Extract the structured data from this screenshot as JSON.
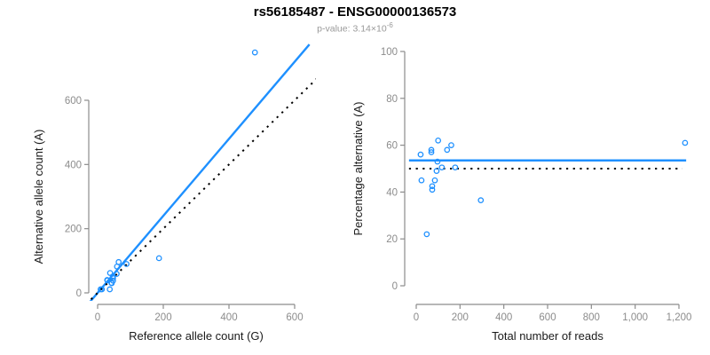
{
  "header": {
    "title": "rs56185487 - ENSG00000136573",
    "subtitle_prefix": "p-value: 3.14×10",
    "subtitle_exponent": "-6"
  },
  "colors": {
    "accent": "#1E90FF",
    "reference": "#000000",
    "axis": "#8C8C8C",
    "tick_text": "#8C8C8C",
    "text": "#1A1A1A",
    "subtitle": "#999999"
  },
  "chart_data": [
    {
      "type": "scatter",
      "panel": "left",
      "xlabel": "Reference allele count (G)",
      "ylabel": "Alternative allele count (A)",
      "xticks": [
        0,
        200,
        400,
        600
      ],
      "xtick_labels": [
        "0",
        "200",
        "400",
        "600"
      ],
      "yticks": [
        0,
        200,
        400,
        600
      ],
      "ytick_labels": [
        "0",
        "200",
        "400",
        "600"
      ],
      "xlim": [
        0,
        620
      ],
      "ylim": [
        0,
        760
      ],
      "grid": false,
      "points": [
        [
          38,
          62
        ],
        [
          29,
          40
        ],
        [
          30,
          39
        ],
        [
          9,
          11
        ],
        [
          64,
          96
        ],
        [
          59,
          82
        ],
        [
          46,
          51
        ],
        [
          58,
          59
        ],
        [
          88,
          90
        ],
        [
          47,
          46
        ],
        [
          13,
          11
        ],
        [
          47,
          38
        ],
        [
          42,
          31
        ],
        [
          43,
          30
        ],
        [
          187,
          108
        ],
        [
          37,
          11
        ],
        [
          479,
          749
        ]
      ],
      "regression_line": {
        "slope": 1.2,
        "intercept": 0,
        "style": "solid",
        "color": "#1E90FF"
      },
      "identity_line": {
        "slope": 1,
        "intercept": 0,
        "style": "dotted",
        "color": "#000000"
      }
    },
    {
      "type": "scatter",
      "panel": "right",
      "xlabel": "Total number of reads",
      "ylabel": "Percentage alternative (A)",
      "xticks": [
        0,
        200,
        400,
        600,
        800,
        1000,
        1200
      ],
      "xtick_labels": [
        "0",
        "200",
        "400",
        "600",
        "800",
        "1,000",
        "1,200"
      ],
      "yticks": [
        0,
        20,
        40,
        60,
        80,
        100
      ],
      "ytick_labels": [
        "0",
        "20",
        "40",
        "60",
        "80",
        "100"
      ],
      "xlim": [
        0,
        1230
      ],
      "ylim": [
        0,
        100
      ],
      "grid": false,
      "points": [
        [
          100,
          62
        ],
        [
          69,
          58
        ],
        [
          69,
          57
        ],
        [
          20,
          56
        ],
        [
          160,
          60
        ],
        [
          141,
          58
        ],
        [
          97,
          53
        ],
        [
          117,
          50.5
        ],
        [
          178,
          50.5
        ],
        [
          93,
          49
        ],
        [
          24,
          45
        ],
        [
          85,
          45
        ],
        [
          73,
          42.5
        ],
        [
          73,
          41
        ],
        [
          295,
          36.5
        ],
        [
          48,
          22
        ],
        [
          1228,
          61
        ]
      ],
      "mean_line": {
        "value": 53.5,
        "style": "solid",
        "color": "#1E90FF"
      },
      "reference_line": {
        "value": 50,
        "style": "dotted",
        "color": "#000000"
      }
    }
  ]
}
